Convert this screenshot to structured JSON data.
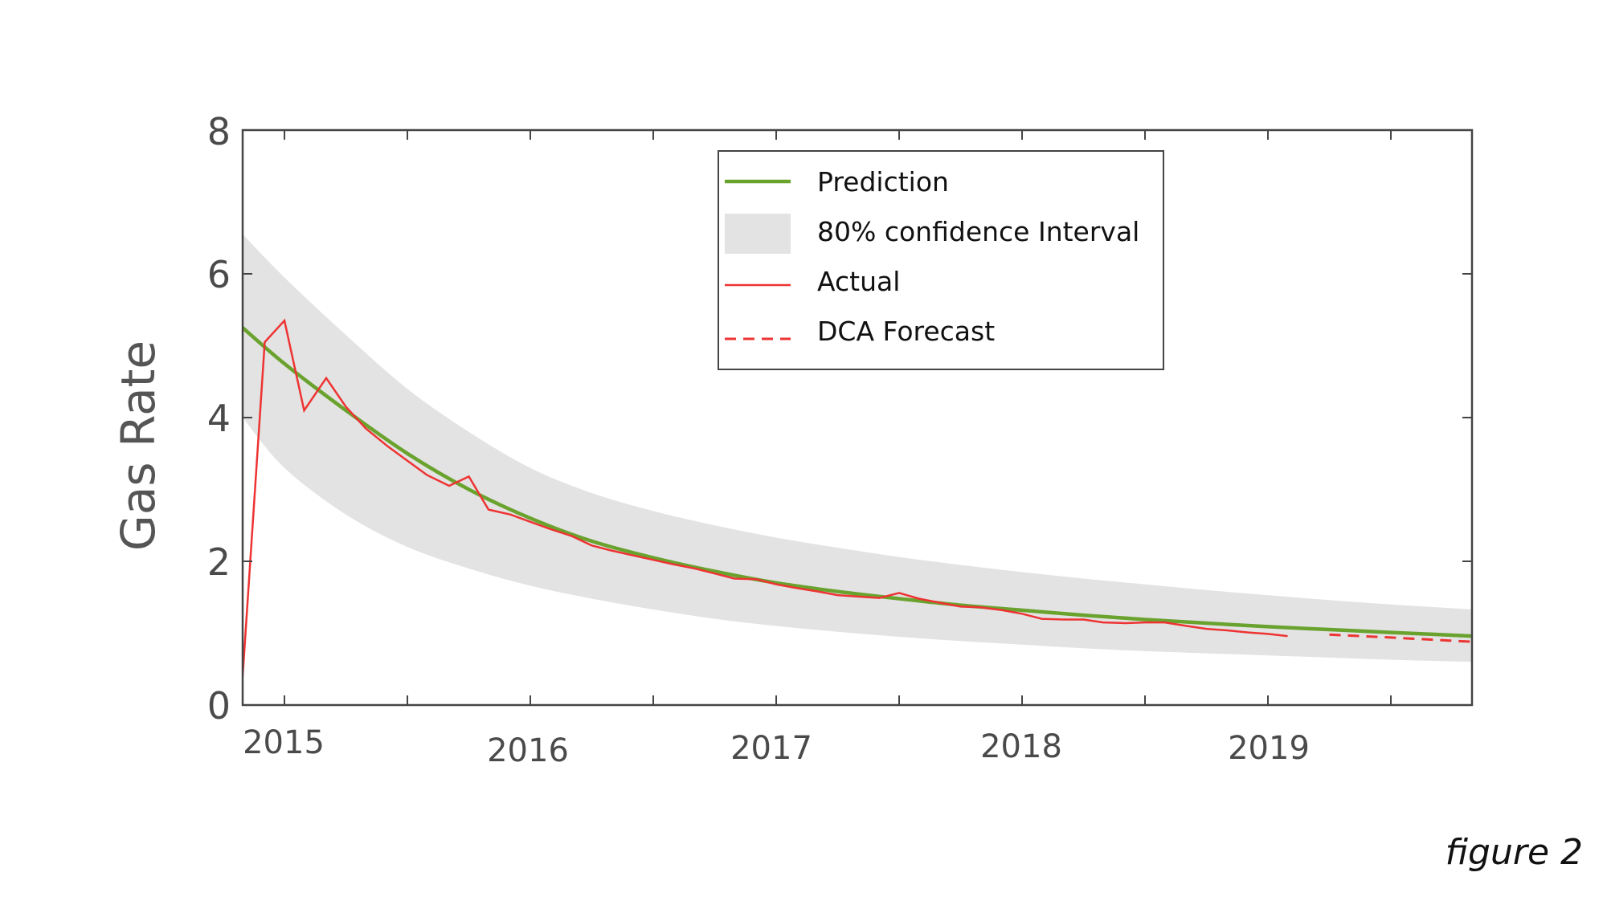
{
  "chart_data": {
    "type": "line",
    "title": "",
    "xlabel": "",
    "ylabel": "Gas Rate",
    "xlim": [
      2014.83,
      2019.83
    ],
    "ylim": [
      0,
      8
    ],
    "x_ticks": [
      2015,
      2016,
      2017,
      2018,
      2019
    ],
    "x_tick_labels": [
      "2015",
      "2016",
      "2017",
      "2018",
      "2019"
    ],
    "x_minor_ticks": [
      2015.5,
      2016.5,
      2017.5,
      2018.5,
      2019.5
    ],
    "y_ticks": [
      0,
      2,
      4,
      6,
      8
    ],
    "y_tick_labels": [
      "0",
      "2",
      "4",
      "6",
      "8"
    ],
    "legend": {
      "position": "top-center",
      "entries": [
        {
          "label": "Prediction",
          "series": "prediction"
        },
        {
          "label": "80% confidence Interval",
          "series": "confidence"
        },
        {
          "label": "Actual",
          "series": "actual"
        },
        {
          "label": "DCA Forecast",
          "series": "dca"
        }
      ]
    },
    "colors": {
      "prediction": "#6aa22e",
      "confidence": "#e3e3e3",
      "actual": "#ee3333",
      "dca": "#ee3333",
      "axis": "#444444"
    },
    "series": [
      {
        "name": "Prediction",
        "key": "prediction",
        "x": [
          2014.83,
          2015.0,
          2015.25,
          2015.5,
          2015.75,
          2016.0,
          2016.25,
          2016.5,
          2016.75,
          2017.0,
          2017.25,
          2017.5,
          2017.75,
          2018.0,
          2018.25,
          2018.5,
          2018.75,
          2019.0,
          2019.25,
          2019.5,
          2019.83
        ],
        "y": [
          5.25,
          4.75,
          4.1,
          3.5,
          3.0,
          2.6,
          2.28,
          2.05,
          1.86,
          1.7,
          1.58,
          1.48,
          1.39,
          1.32,
          1.25,
          1.19,
          1.14,
          1.09,
          1.05,
          1.01,
          0.96
        ]
      },
      {
        "name": "80% confidence Interval (upper)",
        "key": "confidence_upper",
        "x": [
          2014.83,
          2015.0,
          2015.25,
          2015.5,
          2015.75,
          2016.0,
          2016.25,
          2016.5,
          2016.75,
          2017.0,
          2017.25,
          2017.5,
          2017.75,
          2018.0,
          2018.25,
          2018.5,
          2018.75,
          2019.0,
          2019.25,
          2019.5,
          2019.83
        ],
        "y": [
          6.55,
          5.95,
          5.15,
          4.4,
          3.8,
          3.3,
          2.95,
          2.7,
          2.5,
          2.33,
          2.19,
          2.06,
          1.95,
          1.85,
          1.76,
          1.68,
          1.6,
          1.53,
          1.46,
          1.4,
          1.33
        ]
      },
      {
        "name": "80% confidence Interval (lower)",
        "key": "confidence_lower",
        "x": [
          2014.83,
          2015.0,
          2015.25,
          2015.5,
          2015.75,
          2016.0,
          2016.25,
          2016.5,
          2016.75,
          2017.0,
          2017.25,
          2017.5,
          2017.75,
          2018.0,
          2018.25,
          2018.5,
          2018.75,
          2019.0,
          2019.25,
          2019.5,
          2019.83
        ],
        "y": [
          4.0,
          3.3,
          2.65,
          2.2,
          1.9,
          1.66,
          1.48,
          1.33,
          1.2,
          1.1,
          1.02,
          0.95,
          0.89,
          0.84,
          0.79,
          0.75,
          0.72,
          0.69,
          0.66,
          0.63,
          0.6
        ]
      },
      {
        "name": "Actual",
        "key": "actual",
        "x": [
          2014.83,
          2014.92,
          2015.0,
          2015.08,
          2015.17,
          2015.25,
          2015.33,
          2015.42,
          2015.5,
          2015.58,
          2015.67,
          2015.75,
          2015.83,
          2015.92,
          2016.0,
          2016.08,
          2016.17,
          2016.25,
          2016.33,
          2016.42,
          2016.5,
          2016.58,
          2016.67,
          2016.75,
          2016.83,
          2016.92,
          2017.0,
          2017.08,
          2017.17,
          2017.25,
          2017.33,
          2017.42,
          2017.5,
          2017.58,
          2017.67,
          2017.75,
          2017.83,
          2017.92,
          2018.0,
          2018.08,
          2018.17,
          2018.25,
          2018.33,
          2018.42,
          2018.5,
          2018.58,
          2018.67,
          2018.75,
          2018.83,
          2018.92,
          2019.0,
          2019.08
        ],
        "y": [
          0.4,
          5.05,
          5.35,
          4.1,
          4.55,
          4.15,
          3.85,
          3.6,
          3.4,
          3.2,
          3.05,
          3.18,
          2.72,
          2.65,
          2.55,
          2.45,
          2.35,
          2.22,
          2.15,
          2.08,
          2.02,
          1.96,
          1.9,
          1.83,
          1.76,
          1.75,
          1.68,
          1.63,
          1.58,
          1.53,
          1.51,
          1.49,
          1.56,
          1.48,
          1.42,
          1.37,
          1.36,
          1.32,
          1.27,
          1.2,
          1.19,
          1.19,
          1.15,
          1.14,
          1.15,
          1.15,
          1.1,
          1.06,
          1.04,
          1.01,
          0.99,
          0.96
        ]
      },
      {
        "name": "DCA Forecast",
        "key": "dca",
        "x": [
          2019.25,
          2019.5,
          2019.83
        ],
        "y": [
          0.98,
          0.94,
          0.88
        ]
      }
    ]
  },
  "caption": "figure 2"
}
